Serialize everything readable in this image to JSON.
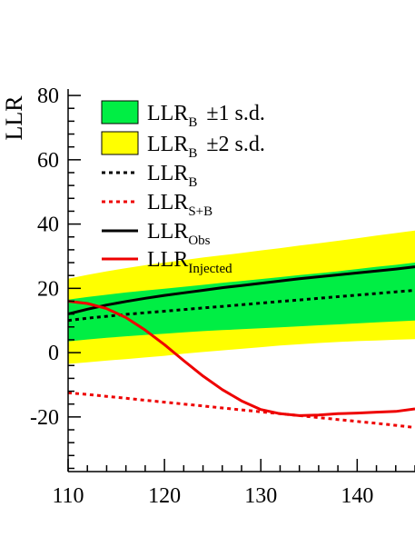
{
  "chart_data": {
    "type": "line",
    "title": "",
    "ylabel": "LLR",
    "xlabel": "",
    "xlim": [
      110,
      146
    ],
    "ylim": [
      -37,
      82
    ],
    "x_ticks": [
      110,
      120,
      130,
      140
    ],
    "y_ticks": [
      80,
      60,
      40,
      20,
      0,
      -20
    ],
    "x_tick_labels": [
      "110",
      "120",
      "130",
      "140"
    ],
    "y_tick_labels": [
      "80",
      "60",
      "40",
      "20",
      "0",
      "-20"
    ],
    "grid": false,
    "legend_position": "top-left",
    "x": [
      110,
      112,
      114,
      116,
      118,
      120,
      122,
      124,
      126,
      128,
      130,
      132,
      134,
      136,
      138,
      140,
      142,
      144,
      146
    ],
    "bands": [
      {
        "name": "LLR_B ±2 s.d.",
        "label_main": "LLR",
        "label_sub": "B",
        "label_suffix": "±2 s.d.",
        "color": "#ffff00",
        "lower": [
          -3.5,
          -3.0,
          -2.5,
          -2.0,
          -1.5,
          -1.0,
          -0.3,
          0.2,
          0.7,
          1.2,
          1.7,
          2.2,
          2.6,
          3.0,
          3.3,
          3.6,
          3.8,
          4.0,
          4.2
        ],
        "upper": [
          23.0,
          24.2,
          25.3,
          26.3,
          27.2,
          28.0,
          28.8,
          29.6,
          30.3,
          31.0,
          31.8,
          32.5,
          33.3,
          34.0,
          34.8,
          35.6,
          36.4,
          37.2,
          38.0
        ]
      },
      {
        "name": "LLR_B ±1 s.d.",
        "label_main": "LLR",
        "label_sub": "B",
        "label_suffix": "±1 s.d.",
        "color": "#00ee44",
        "lower": [
          3.5,
          4.1,
          4.6,
          5.1,
          5.5,
          5.9,
          6.3,
          6.7,
          7.0,
          7.3,
          7.6,
          7.9,
          8.2,
          8.5,
          8.8,
          9.1,
          9.4,
          9.7,
          10.0
        ],
        "upper": [
          16.5,
          17.3,
          18.0,
          18.7,
          19.3,
          19.9,
          20.5,
          21.1,
          21.7,
          22.3,
          22.9,
          23.5,
          24.1,
          24.7,
          25.3,
          26.0,
          26.7,
          27.3,
          28.0
        ]
      }
    ],
    "series": [
      {
        "name": "LLR_B",
        "label_main": "LLR",
        "label_sub": "B",
        "color": "#000000",
        "dash": "dotted",
        "values": [
          10.0,
          10.7,
          11.3,
          11.9,
          12.4,
          12.9,
          13.4,
          13.9,
          14.4,
          14.9,
          15.4,
          15.9,
          16.4,
          16.9,
          17.4,
          17.9,
          18.4,
          18.9,
          19.4
        ]
      },
      {
        "name": "LLR_S+B",
        "label_main": "LLR",
        "label_sub": "S+B",
        "color": "#ee0000",
        "dash": "dotted",
        "values": [
          -12.5,
          -13.0,
          -13.6,
          -14.2,
          -14.8,
          -15.4,
          -16.0,
          -16.6,
          -17.2,
          -17.8,
          -18.4,
          -19.0,
          -19.6,
          -20.2,
          -20.8,
          -21.4,
          -22.0,
          -22.6,
          -23.3
        ]
      },
      {
        "name": "LLR_Obs",
        "label_main": "LLR",
        "label_sub": "Obs",
        "color": "#000000",
        "dash": "solid",
        "values": [
          12.0,
          13.5,
          14.8,
          15.9,
          16.9,
          17.8,
          18.6,
          19.4,
          20.2,
          20.9,
          21.6,
          22.3,
          23.0,
          23.6,
          24.2,
          24.8,
          25.4,
          26.0,
          26.7
        ]
      },
      {
        "name": "LLR_Injected",
        "label_main": "LLR",
        "label_sub": "Injected",
        "color": "#ee0000",
        "dash": "solid",
        "values": [
          16.0,
          15.3,
          13.7,
          10.9,
          7.0,
          2.5,
          -2.5,
          -7.3,
          -11.5,
          -15.0,
          -17.7,
          -19.0,
          -19.6,
          -19.4,
          -19.0,
          -18.8,
          -18.5,
          -18.3,
          -17.5
        ]
      }
    ],
    "legend": [
      {
        "key": "LLR_B ±1 s.d.",
        "kind": "box",
        "color": "#00ee44",
        "main": "LLR",
        "sub": "B",
        "suffix": "±1 s.d."
      },
      {
        "key": "LLR_B ±2 s.d.",
        "kind": "box",
        "color": "#ffff00",
        "main": "LLR",
        "sub": "B",
        "suffix": "±2 s.d."
      },
      {
        "key": "LLR_B",
        "kind": "line",
        "color": "#000000",
        "dash": "dotted",
        "main": "LLR",
        "sub": "B",
        "suffix": ""
      },
      {
        "key": "LLR_S+B",
        "kind": "line",
        "color": "#ee0000",
        "dash": "dotted",
        "main": "LLR",
        "sub": "S+B",
        "suffix": ""
      },
      {
        "key": "LLR_Obs",
        "kind": "line",
        "color": "#000000",
        "dash": "solid",
        "main": "LLR",
        "sub": "Obs",
        "suffix": ""
      },
      {
        "key": "LLR_Injected",
        "kind": "line",
        "color": "#ee0000",
        "dash": "solid",
        "main": "LLR",
        "sub": "Injected",
        "suffix": ""
      }
    ]
  }
}
